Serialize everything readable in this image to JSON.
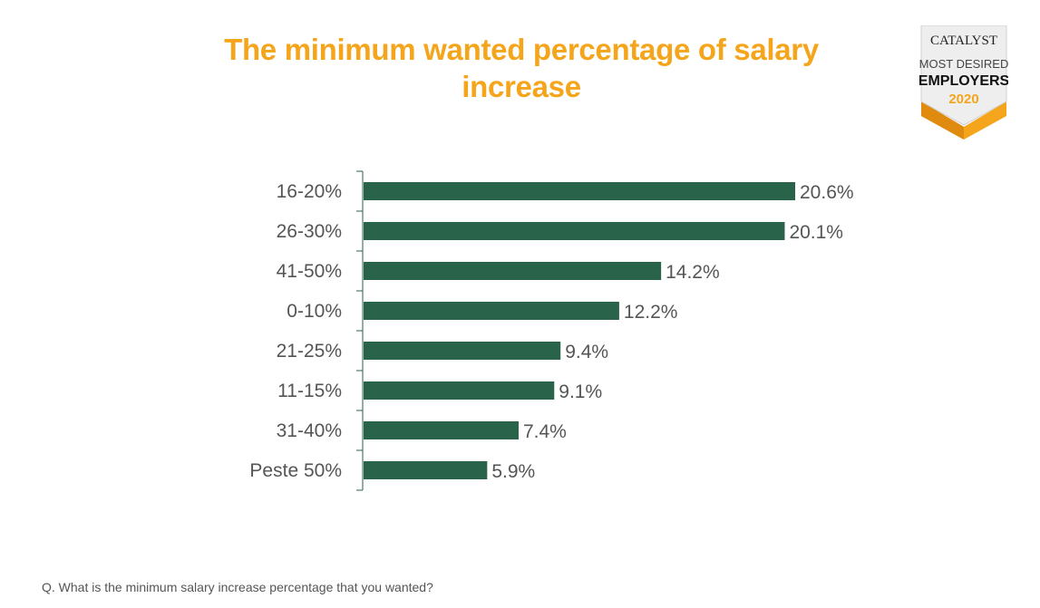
{
  "title": "The minimum wanted percentage of salary increase",
  "badge": {
    "brand": "CATALYST",
    "line1": "MOST DESIRED",
    "line2": "EMPLOYERS",
    "year": "2020"
  },
  "footnote": "Q. What is the minimum salary increase percentage that you wanted?",
  "colors": {
    "title": "#f5a51c",
    "bar": "#28634a",
    "axis": "#2f5d4a",
    "text": "#555555"
  },
  "chart_data": {
    "type": "bar",
    "orientation": "horizontal",
    "categories": [
      "16-20%",
      "26-30%",
      "41-50%",
      "0-10%",
      "21-25%",
      "11-15%",
      "31-40%",
      "Peste 50%"
    ],
    "values": [
      20.6,
      20.1,
      14.2,
      12.2,
      9.4,
      9.1,
      7.4,
      5.9
    ],
    "value_labels": [
      "20.6%",
      "20.1%",
      "14.2%",
      "12.2%",
      "9.4%",
      "9.1%",
      "7.4%",
      "5.9%"
    ],
    "unit": "%",
    "xlim": [
      0,
      20.6
    ],
    "grid": false,
    "legend": "none"
  }
}
